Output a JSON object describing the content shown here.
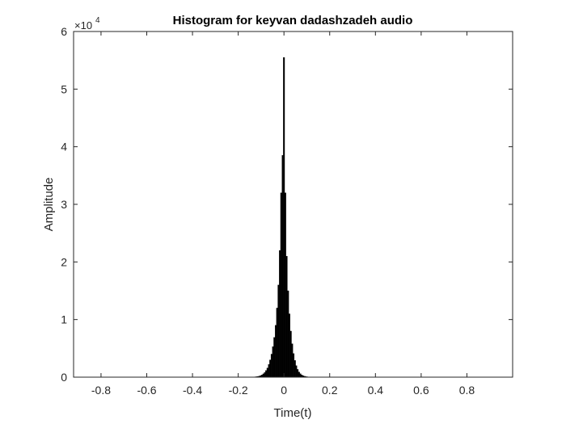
{
  "chart_data": {
    "type": "bar",
    "title": "Histogram for keyvan dadashzadeh audio",
    "xlabel": "Time(t)",
    "ylabel": "Amplitude",
    "xlim": [
      -0.92,
      1.0
    ],
    "ylim": [
      0,
      60000
    ],
    "xticks": [
      -0.8,
      -0.6,
      -0.4,
      -0.2,
      0,
      0.2,
      0.4,
      0.6,
      0.8
    ],
    "xtick_labels": [
      "-0.8",
      "-0.6",
      "-0.4",
      "-0.2",
      "0",
      "0.2",
      "0.4",
      "0.6",
      "0.8"
    ],
    "yticks": [
      0,
      10000,
      20000,
      30000,
      40000,
      50000,
      60000
    ],
    "ytick_labels": [
      "0",
      "1",
      "2",
      "3",
      "4",
      "5",
      "6"
    ],
    "y_exponent_label": "×10",
    "y_exponent_power": "4",
    "grid": false,
    "bar_color": "#000000",
    "bin_width": 0.006,
    "x": [
      -0.132,
      -0.126,
      -0.12,
      -0.114,
      -0.108,
      -0.102,
      -0.096,
      -0.09,
      -0.084,
      -0.078,
      -0.072,
      -0.066,
      -0.06,
      -0.054,
      -0.048,
      -0.042,
      -0.036,
      -0.03,
      -0.024,
      -0.018,
      -0.012,
      -0.006,
      0,
      0.006,
      0.012,
      0.018,
      0.024,
      0.03,
      0.036,
      0.042,
      0.048,
      0.054,
      0.06,
      0.066,
      0.072,
      0.078,
      0.084,
      0.09,
      0.096,
      0.102,
      0.108
    ],
    "values": [
      40,
      60,
      90,
      130,
      190,
      280,
      400,
      580,
      820,
      1150,
      1600,
      2200,
      3000,
      4000,
      5300,
      6900,
      9000,
      12000,
      16000,
      22000,
      32000,
      38500,
      55500,
      32000,
      21000,
      15000,
      11000,
      8000,
      5800,
      4100,
      2900,
      2000,
      1350,
      900,
      600,
      400,
      260,
      170,
      110,
      70,
      40
    ]
  }
}
